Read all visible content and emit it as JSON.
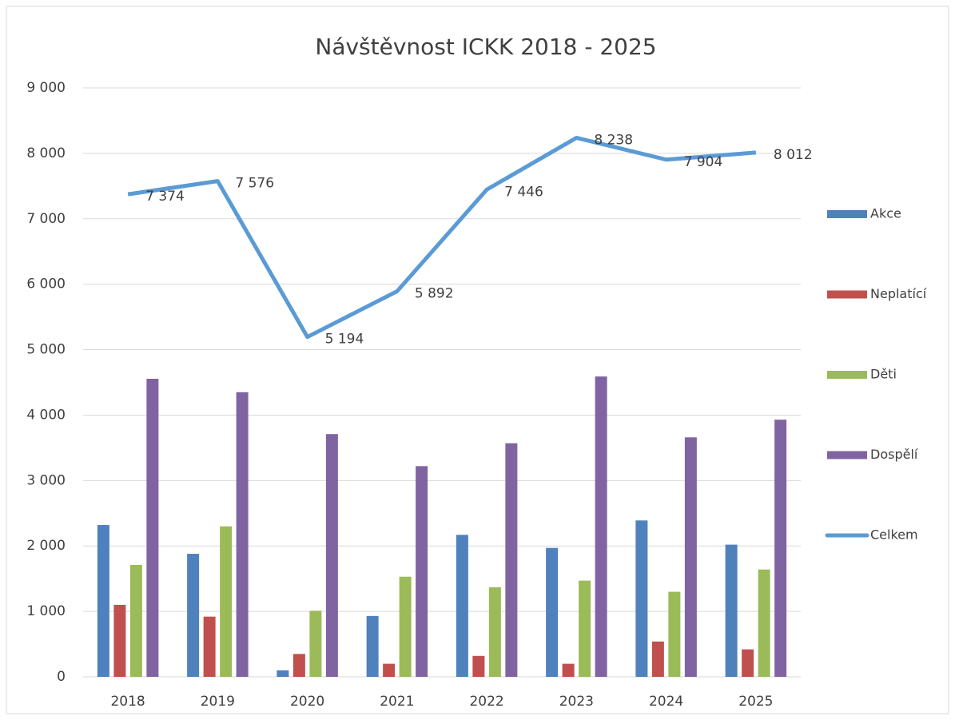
{
  "chart_data": {
    "type": "bar",
    "title": "Návštěvnost ICKK 2018 - 2025",
    "categories": [
      "2018",
      "2019",
      "2020",
      "2021",
      "2022",
      "2023",
      "2024",
      "2025"
    ],
    "series": [
      {
        "name": "Akce",
        "color": "#4f81bd",
        "values": [
          2320,
          1880,
          100,
          930,
          2170,
          1970,
          2390,
          2020
        ]
      },
      {
        "name": "Neplatící",
        "color": "#c0504d",
        "values": [
          1100,
          920,
          350,
          200,
          320,
          200,
          540,
          420
        ]
      },
      {
        "name": "Děti",
        "color": "#9bbb59",
        "values": [
          1710,
          2300,
          1010,
          1530,
          1370,
          1470,
          1300,
          1640
        ]
      },
      {
        "name": "Dospělí",
        "color": "#8064a2",
        "values": [
          4555,
          4350,
          3710,
          3220,
          3570,
          4590,
          3660,
          3930
        ]
      },
      {
        "name": "Celkem",
        "color": "#5b9bd5",
        "type": "line",
        "values": [
          7374,
          7576,
          5194,
          5892,
          7446,
          8238,
          7904,
          8012
        ],
        "value_labels": [
          "7 374",
          "7 576",
          "5 194",
          "5 892",
          "7 446",
          "8 238",
          "7 904",
          "8 012"
        ]
      }
    ],
    "ylim": [
      0,
      9000
    ],
    "yticks": [
      0,
      {
        "value": 1000,
        "label": "1 000"
      },
      {
        "value": 2000,
        "label": "2 000"
      },
      {
        "value": 3000,
        "label": "3 000"
      },
      {
        "value": 4000,
        "label": "4 000"
      },
      {
        "value": 5000,
        "label": "5 000"
      },
      {
        "value": 6000,
        "label": "6 000"
      },
      {
        "value": 7000,
        "label": "7 000"
      },
      {
        "value": 8000,
        "label": "8 000"
      },
      {
        "value": 9000,
        "label": "9 000"
      }
    ],
    "grid": true,
    "legend": "right"
  }
}
